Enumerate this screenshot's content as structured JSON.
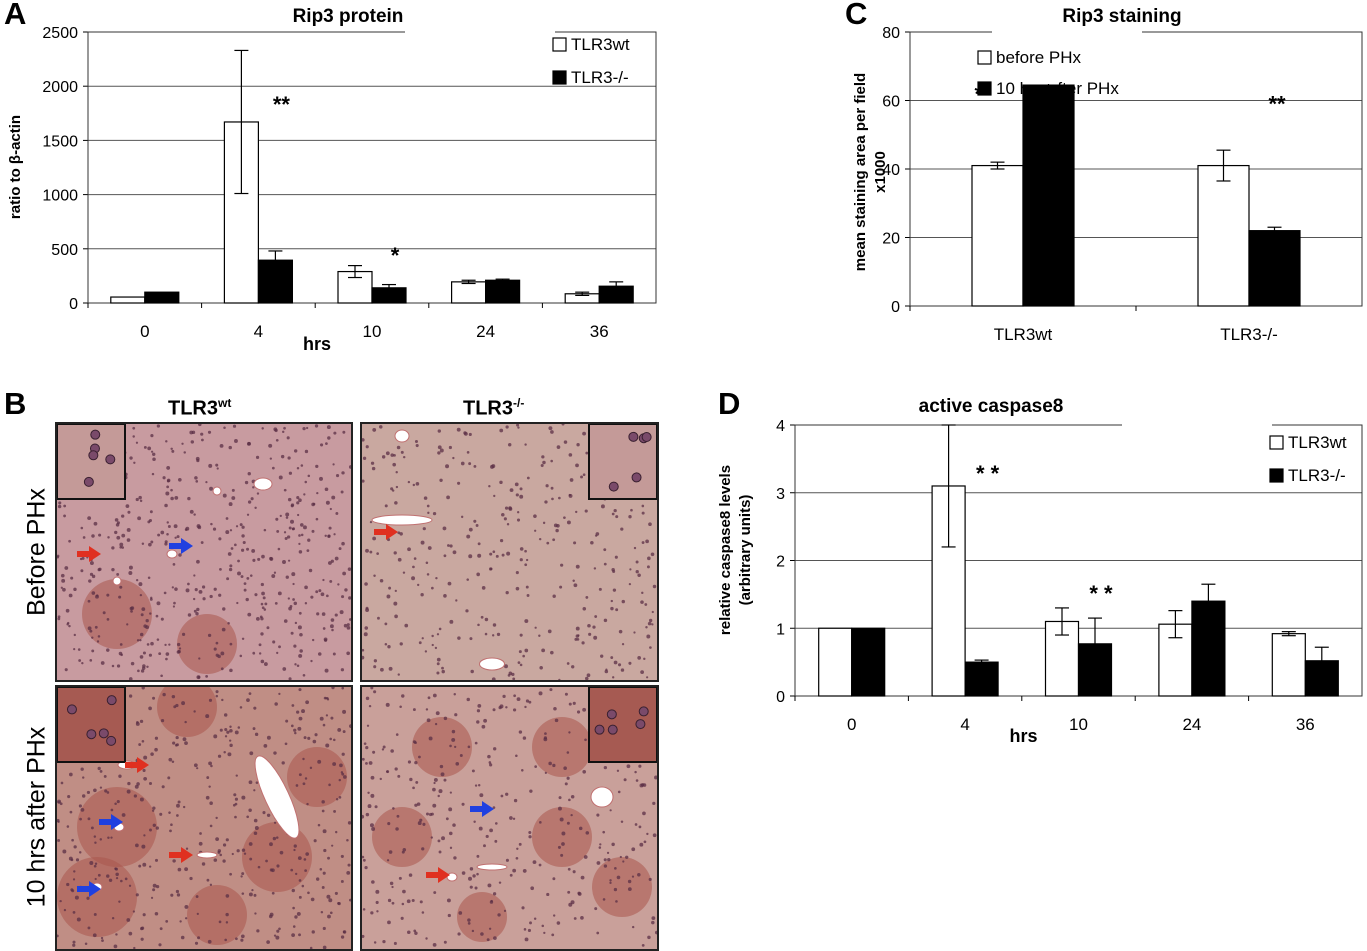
{
  "panels": {
    "A": "A",
    "B": "B",
    "C": "C",
    "D": "D"
  },
  "panel_b": {
    "col_labels": [
      {
        "base": "TLR3",
        "sup": "wt"
      },
      {
        "base": "TLR3",
        "sup": "-/-"
      }
    ],
    "row_labels": [
      "Before PHx",
      "10 hrs after PHx"
    ],
    "colors": {
      "tissue_light": "#d8b7b4",
      "tissue_dark": "#a9564c",
      "nuclei": "#5b2f45",
      "red_arrow": "#e03020",
      "blue_arrow": "#2040e0"
    }
  },
  "chart_data": [
    {
      "id": "A",
      "type": "bar",
      "title": "Rip3 protein",
      "xlabel": "hrs",
      "ylabel": "ratio to β-actin",
      "ylim": [
        0,
        2500
      ],
      "yticks": [
        "0",
        "500",
        "1000",
        "1500",
        "2000",
        "2500"
      ],
      "categories": [
        "0",
        "4",
        "10",
        "24",
        "36"
      ],
      "grid": true,
      "legend": "top-right",
      "series": [
        {
          "name": "TLR3wt",
          "color": "#ffffff",
          "values": [
            55,
            1670,
            290,
            195,
            85
          ],
          "errors": [
            0,
            660,
            55,
            15,
            15
          ]
        },
        {
          "name": "TLR3-/-",
          "color": "#000000",
          "values": [
            100,
            395,
            140,
            210,
            155
          ],
          "errors": [
            0,
            85,
            30,
            10,
            40
          ]
        }
      ],
      "annotations": [
        {
          "category": 1,
          "text": "**"
        },
        {
          "category": 2,
          "text": "*"
        }
      ]
    },
    {
      "id": "C",
      "type": "bar",
      "title": "Rip3 staining",
      "xlabel": "",
      "ylabel": "mean staining area per field x1000",
      "ylabel_lines": [
        "mean staining area per field",
        "x1000"
      ],
      "ylim": [
        0,
        80
      ],
      "yticks": [
        "0",
        "20",
        "40",
        "60",
        "80"
      ],
      "categories": [
        "TLR3wt",
        "TLR3-/-"
      ],
      "grid": true,
      "legend": "top-right",
      "series": [
        {
          "name": "before PHx",
          "color": "#ffffff",
          "values": [
            41,
            41
          ],
          "errors": [
            1,
            4.5
          ]
        },
        {
          "name": "10 hrs after PHx",
          "color": "#000000",
          "values": [
            64.5,
            22
          ],
          "errors": [
            4.5,
            1
          ]
        }
      ],
      "annotations": [
        {
          "category": 0,
          "text": "**"
        },
        {
          "category": 1,
          "text": "**"
        }
      ]
    },
    {
      "id": "D",
      "type": "bar",
      "title": "active caspase8",
      "xlabel": "hrs",
      "ylabel": "relative caspase8 levels (arbitrary units)",
      "ylabel_lines": [
        "relative caspase8 levels",
        "(arbitrary units)"
      ],
      "ylim": [
        0,
        4
      ],
      "yticks": [
        "0",
        "1",
        "2",
        "3",
        "4"
      ],
      "categories": [
        "0",
        "4",
        "10",
        "24",
        "36"
      ],
      "grid": true,
      "legend": "top-right",
      "series": [
        {
          "name": "TLR3wt",
          "color": "#ffffff",
          "values": [
            1.0,
            3.1,
            1.1,
            1.06,
            0.92
          ],
          "errors": [
            0,
            0.9,
            0.2,
            0.2,
            0.03
          ]
        },
        {
          "name": "TLR3-/-",
          "color": "#000000",
          "values": [
            1.0,
            0.5,
            0.77,
            1.4,
            0.52
          ],
          "errors": [
            0,
            0.03,
            0.38,
            0.25,
            0.2
          ]
        }
      ],
      "annotations": [
        {
          "category": 1,
          "text": "* *"
        },
        {
          "category": 2,
          "text": "* *"
        }
      ]
    }
  ]
}
